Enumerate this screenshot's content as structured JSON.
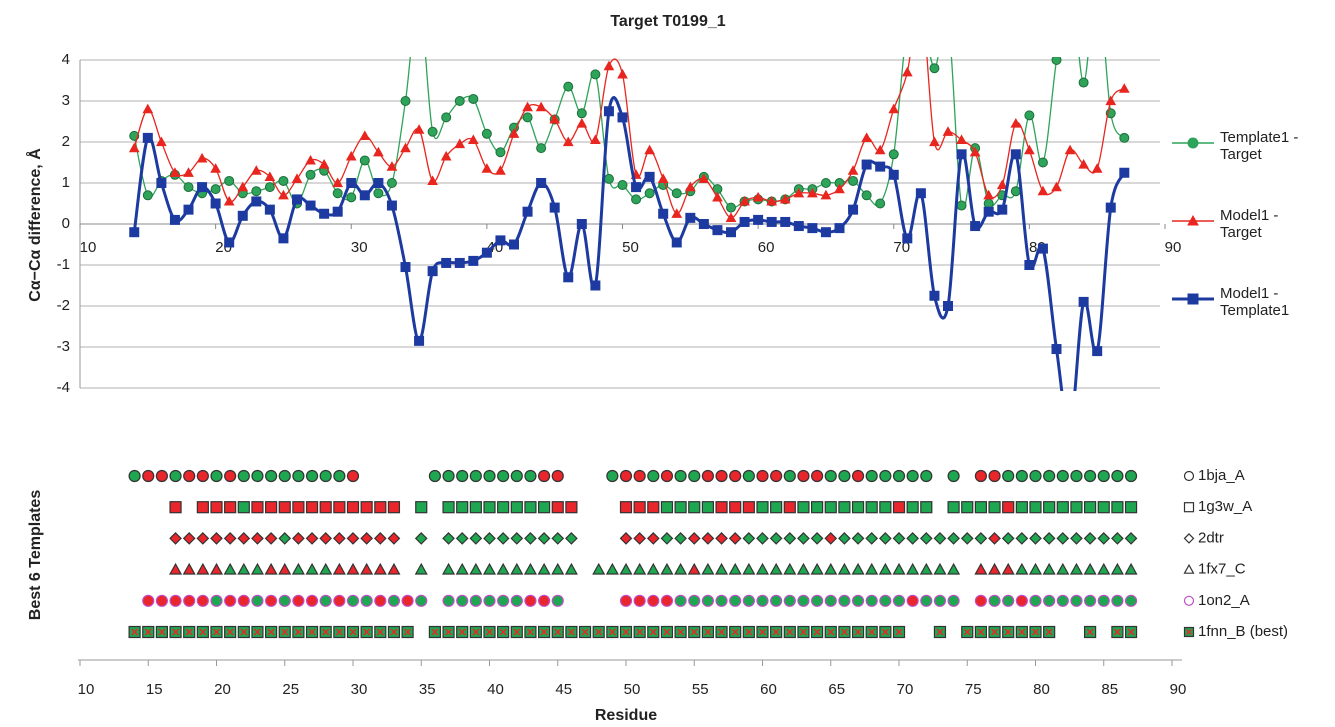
{
  "chart_data": [
    {
      "type": "line",
      "title": "Target T0199_1",
      "ylabel": "Cα−Cα difference, Å",
      "xlim": [
        10,
        90
      ],
      "xticks": [
        10,
        20,
        30,
        40,
        50,
        60,
        70,
        80,
        90
      ],
      "ylim": [
        -4,
        4
      ],
      "yticks": [
        -4,
        -3,
        -2,
        -1,
        0,
        1,
        2,
        3,
        4
      ],
      "grid": true,
      "x": [
        14,
        15,
        16,
        17,
        18,
        19,
        20,
        21,
        22,
        23,
        24,
        25,
        26,
        27,
        28,
        29,
        30,
        31,
        32,
        33,
        34,
        35,
        36,
        37,
        38,
        39,
        40,
        41,
        42,
        43,
        44,
        45,
        46,
        47,
        48,
        49,
        50,
        51,
        52,
        53,
        54,
        55,
        56,
        57,
        58,
        59,
        60,
        61,
        62,
        63,
        64,
        65,
        66,
        67,
        68,
        69,
        70,
        71,
        72,
        73,
        74,
        75,
        76,
        77,
        78,
        79,
        80,
        81,
        82,
        83,
        84,
        85,
        86,
        87
      ],
      "series": [
        {
          "name": "Template1 - Target",
          "color": "#2ea35a",
          "marker": "circle",
          "values": [
            2.15,
            0.7,
            1.05,
            1.2,
            0.9,
            0.75,
            0.85,
            1.05,
            0.75,
            0.8,
            0.9,
            1.05,
            0.5,
            1.2,
            1.3,
            0.75,
            0.65,
            1.55,
            0.75,
            1.0,
            3.0,
            5.5,
            2.25,
            2.6,
            3.0,
            3.05,
            2.2,
            1.75,
            2.35,
            2.6,
            1.85,
            2.55,
            3.35,
            2.7,
            3.65,
            1.1,
            0.95,
            0.6,
            0.75,
            0.95,
            0.75,
            0.8,
            1.15,
            0.85,
            0.4,
            0.55,
            0.6,
            0.55,
            0.6,
            0.85,
            0.85,
            1.0,
            1.0,
            1.05,
            0.7,
            0.5,
            1.7,
            4.8,
            5.2,
            3.8,
            5.0,
            0.45,
            1.85,
            0.5,
            0.7,
            0.8,
            2.65,
            1.5,
            4.0,
            6.0,
            3.45,
            6.0,
            2.7,
            2.1
          ]
        },
        {
          "name": "Model1 - Target",
          "color": "#e8261f",
          "marker": "triangle",
          "values": [
            1.85,
            2.8,
            2.0,
            1.25,
            1.25,
            1.6,
            1.35,
            0.55,
            0.9,
            1.3,
            1.15,
            0.7,
            1.1,
            1.55,
            1.45,
            1.0,
            1.65,
            2.15,
            1.75,
            1.4,
            1.85,
            2.3,
            1.05,
            1.65,
            1.95,
            2.05,
            1.35,
            1.3,
            2.2,
            2.85,
            2.85,
            2.55,
            2.0,
            2.45,
            2.05,
            3.85,
            3.65,
            1.2,
            1.8,
            1.1,
            0.25,
            0.9,
            1.1,
            0.65,
            0.15,
            0.55,
            0.65,
            0.55,
            0.6,
            0.75,
            0.75,
            0.7,
            0.85,
            1.3,
            2.1,
            1.8,
            2.8,
            3.7,
            5.5,
            2.0,
            2.25,
            2.05,
            1.75,
            0.7,
            0.95,
            2.45,
            1.8,
            0.8,
            0.9,
            1.8,
            1.45,
            1.35,
            3.0,
            3.3
          ]
        },
        {
          "name": "Model1 - Template1",
          "color": "#1c3aa0",
          "marker": "square",
          "values": [
            -0.2,
            2.1,
            1.0,
            0.1,
            0.35,
            0.9,
            0.5,
            -0.45,
            0.2,
            0.55,
            0.35,
            -0.35,
            0.6,
            0.45,
            0.25,
            0.3,
            1.0,
            0.7,
            1.0,
            0.45,
            -1.05,
            -2.85,
            -1.15,
            -0.95,
            -0.95,
            -0.9,
            -0.7,
            -0.4,
            -0.5,
            0.3,
            1.0,
            0.4,
            -1.3,
            0.0,
            -1.5,
            2.75,
            2.6,
            0.9,
            1.15,
            0.25,
            -0.45,
            0.15,
            0.0,
            -0.15,
            -0.2,
            0.05,
            0.1,
            0.05,
            0.05,
            -0.05,
            -0.1,
            -0.2,
            -0.1,
            0.35,
            1.45,
            1.4,
            1.2,
            -0.35,
            0.75,
            -1.75,
            -2.0,
            1.7,
            -0.05,
            0.3,
            0.35,
            1.7,
            -1.0,
            -0.6,
            -3.05,
            -5.0,
            -1.9,
            -3.1,
            0.4,
            1.25
          ]
        }
      ]
    },
    {
      "type": "scatter",
      "ylabel": "Best 6 Templates",
      "xlabel": "Residue",
      "xlim": [
        10,
        90
      ],
      "xticks": [
        10,
        15,
        20,
        25,
        30,
        35,
        40,
        45,
        50,
        55,
        60,
        65,
        70,
        75,
        80,
        85,
        90
      ],
      "palette": {
        "r": "#e8262b",
        "g": "#1fa651",
        "x": "#1fa651"
      },
      "series": [
        {
          "name": "1bja_A",
          "shape": "circle",
          "stroke": "#333",
          "x": [
            14,
            15,
            16,
            17,
            18,
            19,
            20,
            21,
            22,
            23,
            24,
            25,
            26,
            27,
            28,
            29,
            30,
            36,
            37,
            38,
            39,
            40,
            41,
            42,
            43,
            44,
            45,
            49,
            50,
            51,
            52,
            53,
            54,
            55,
            56,
            57,
            58,
            59,
            60,
            61,
            62,
            63,
            64,
            65,
            66,
            67,
            68,
            69,
            70,
            71,
            72,
            74,
            76,
            77,
            78,
            79,
            80,
            81,
            82,
            83,
            84,
            85,
            86,
            87
          ],
          "colors": "grrgrrgrggggggggrggggggggrrgrrgrggrrrgrrgrrggrggggggrrgggggggggg"
        },
        {
          "name": "1g3w_A",
          "shape": "square",
          "stroke": "#333",
          "x": [
            17,
            19,
            20,
            21,
            22,
            23,
            24,
            25,
            26,
            27,
            28,
            29,
            30,
            31,
            32,
            33,
            35,
            37,
            38,
            39,
            40,
            41,
            42,
            43,
            44,
            45,
            46,
            50,
            51,
            52,
            53,
            54,
            55,
            56,
            57,
            58,
            59,
            60,
            61,
            62,
            63,
            64,
            65,
            66,
            67,
            68,
            69,
            70,
            71,
            72,
            74,
            75,
            76,
            77,
            78,
            79,
            80,
            81,
            82,
            83,
            84,
            85,
            86,
            87
          ],
          "colors": "rrrrgrrrrrrrrrrrgggggggggrrrrrggggrrrggrgggggggrggggggrggggggggg"
        },
        {
          "name": "2dtr",
          "shape": "diamond",
          "stroke": "#333",
          "x": [
            17,
            18,
            19,
            20,
            21,
            22,
            23,
            24,
            25,
            26,
            27,
            28,
            29,
            30,
            31,
            32,
            33,
            35,
            37,
            38,
            39,
            40,
            41,
            42,
            43,
            44,
            45,
            46,
            50,
            51,
            52,
            53,
            54,
            55,
            56,
            57,
            58,
            59,
            60,
            61,
            62,
            63,
            64,
            65,
            66,
            67,
            68,
            69,
            70,
            71,
            72,
            73,
            74,
            75,
            76,
            77,
            78,
            79,
            80,
            81,
            82,
            83,
            84,
            85,
            86,
            87
          ],
          "colors": "rrrrrrrrgrrrrrrrrgggggggggggrrrggrrrrggggggrgggggggggggrgggggggggg"
        },
        {
          "name": "1fx7_C",
          "shape": "triangle",
          "stroke": "#333",
          "x": [
            17,
            18,
            19,
            20,
            21,
            22,
            23,
            24,
            25,
            26,
            27,
            28,
            29,
            30,
            31,
            32,
            33,
            35,
            37,
            38,
            39,
            40,
            41,
            42,
            43,
            44,
            45,
            46,
            48,
            49,
            50,
            51,
            52,
            53,
            54,
            55,
            56,
            57,
            58,
            59,
            60,
            61,
            62,
            63,
            64,
            65,
            66,
            67,
            68,
            69,
            70,
            71,
            72,
            73,
            74,
            76,
            77,
            78,
            79,
            80,
            81,
            82,
            83,
            84,
            85,
            86,
            87
          ],
          "colors": "rrrrgggrrgggrrrrrggggggggggggggggggrgggggggggggggggggggrrrggggggggg"
        },
        {
          "name": "1on2_A",
          "shape": "circle",
          "stroke": "#c04cc8",
          "x": [
            15,
            16,
            17,
            18,
            19,
            20,
            21,
            22,
            23,
            24,
            25,
            26,
            27,
            28,
            29,
            30,
            31,
            32,
            33,
            34,
            35,
            37,
            38,
            39,
            40,
            41,
            42,
            43,
            44,
            45,
            50,
            51,
            52,
            53,
            54,
            55,
            56,
            57,
            58,
            59,
            60,
            61,
            62,
            63,
            64,
            65,
            66,
            67,
            68,
            69,
            70,
            71,
            72,
            73,
            74,
            76,
            77,
            78,
            79,
            80,
            81,
            82,
            83,
            84,
            85,
            86,
            87
          ],
          "colors": "rrrrrgrrgrgrrgrggrgrgggggggrrgrrrrgggggggggggggggggrgggrggrgggggggg"
        },
        {
          "name": "1fnn_B (best)",
          "shape": "xsquare",
          "stroke": "#333",
          "x": [
            14,
            15,
            16,
            17,
            18,
            19,
            20,
            21,
            22,
            23,
            24,
            25,
            26,
            27,
            28,
            29,
            30,
            31,
            32,
            33,
            34,
            36,
            37,
            38,
            39,
            40,
            41,
            42,
            43,
            44,
            45,
            46,
            47,
            48,
            49,
            50,
            51,
            52,
            53,
            54,
            55,
            56,
            57,
            58,
            59,
            60,
            61,
            62,
            63,
            64,
            65,
            66,
            67,
            68,
            69,
            70,
            73,
            75,
            76,
            77,
            78,
            79,
            80,
            81,
            84,
            86,
            87
          ],
          "colors": "xxxxxxxxxxxxxxxxxxxxxxxxxxxxxxxxxxxxxxxxxxxxxxxxxxxxxxxxxxxxxxxxxxx"
        }
      ]
    }
  ]
}
